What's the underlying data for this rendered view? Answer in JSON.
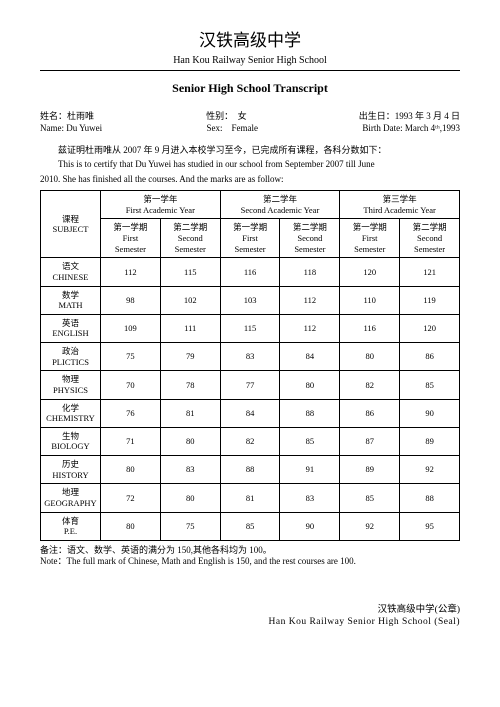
{
  "school": {
    "name_cn": "汉铁高级中学",
    "name_en": "Han Kou Railway Senior High School"
  },
  "heading": "Senior High School Transcript",
  "student": {
    "name_label_cn": "姓名：",
    "name_cn": "杜雨唯",
    "name_label_en": "Name:",
    "name_en": "Du Yuwei",
    "sex_label_cn": "性别：",
    "sex_cn": "女",
    "sex_label_en": "Sex:",
    "sex_en": "Female",
    "birth_label_cn": "出生日：",
    "birth_cn": "1993 年 3 月 4 日",
    "birth_label_en": "Birth Date:",
    "birth_en": "March 4ᵗʰ,1993"
  },
  "cert_cn": "兹证明杜雨唯从 2007 年 9 月进入本校学习至今，已完成所有课程，各科分数如下：",
  "cert_en1": "This is to certify that Du Yuwei has studied in our school from September 2007 till June",
  "cert_en2": "2010. She has finished all the courses. And the marks are as follow:",
  "table": {
    "subject_label_cn": "课程",
    "subject_label_en": "SUBJECT",
    "years": [
      {
        "cn": "第一学年",
        "en": "First Academic Year"
      },
      {
        "cn": "第二学年",
        "en": "Second Academic Year"
      },
      {
        "cn": "第三学年",
        "en": "Third Academic Year"
      }
    ],
    "sem_labels": {
      "s1_cn": "第一学期",
      "s1_en1": "First",
      "s1_en2": "Semester",
      "s2_cn": "第二学期",
      "s2_en1": "Second",
      "s2_en2": "Semester"
    },
    "subjects": [
      {
        "cn": "语文",
        "en": "CHINESE",
        "s": [
          112,
          115,
          116,
          118,
          120,
          121
        ]
      },
      {
        "cn": "数学",
        "en": "MATH",
        "s": [
          98,
          102,
          103,
          112,
          110,
          119
        ]
      },
      {
        "cn": "英语",
        "en": "ENGLISH",
        "s": [
          109,
          111,
          115,
          112,
          116,
          120
        ]
      },
      {
        "cn": "政治",
        "en": "PLICTICS",
        "s": [
          75,
          79,
          83,
          84,
          80,
          86
        ]
      },
      {
        "cn": "物理",
        "en": "PHYSICS",
        "s": [
          70,
          78,
          77,
          80,
          82,
          85
        ]
      },
      {
        "cn": "化学",
        "en": "CHEMISTRY",
        "s": [
          76,
          81,
          84,
          88,
          86,
          90
        ]
      },
      {
        "cn": "生物",
        "en": "BIOLOGY",
        "s": [
          71,
          80,
          82,
          85,
          87,
          89
        ]
      },
      {
        "cn": "历史",
        "en": "HISTORY",
        "s": [
          80,
          83,
          88,
          91,
          89,
          92
        ]
      },
      {
        "cn": "地理",
        "en": "GEOGRAPHY",
        "s": [
          72,
          80,
          81,
          83,
          85,
          88
        ]
      },
      {
        "cn": "体育",
        "en": "P.E.",
        "s": [
          80,
          75,
          85,
          90,
          92,
          95
        ]
      }
    ]
  },
  "note_cn": "备注：语文、数学、英语的满分为 150,其他各科均为 100。",
  "note_en": "Note：The full mark of Chinese, Math and English is 150, and the rest courses are 100.",
  "seal_cn": "汉铁高级中学(公章)",
  "seal_en": "Han Kou Railway Senior High School (Seal)"
}
